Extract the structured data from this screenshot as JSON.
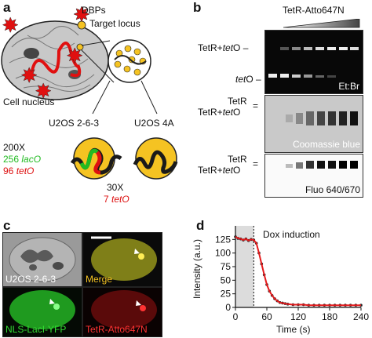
{
  "panel_a": {
    "label": "a",
    "legend_dbps": "DBPs",
    "legend_locus": "Target locus",
    "nucleus_label": "Cell nucleus",
    "line1": "U2OS 2-6-3",
    "line2": "U2OS 4A",
    "rep1": "200X",
    "lac1": "256",
    "lac2": "lacO",
    "tet1": "96",
    "tet2": "tetO",
    "rep2": "30X",
    "tet3": "7",
    "tet4": "tetO",
    "colors": {
      "lac": "#22bb22",
      "tet": "#dd1111",
      "locus": "#f5c322"
    }
  },
  "panel_b": {
    "label": "b",
    "title": "TetR-Atto647N",
    "gel1_top": "TetR+",
    "gel1_top_it": "tet",
    "gel1_top_end": "O",
    "gel1_bottom_it": "tet",
    "gel1_bottom_end": "O",
    "gel1_stain": "Et:Br",
    "gel2_l1": "TetR",
    "gel2_l2": "TetR+",
    "gel2_l2_it": "tet",
    "gel2_l2_end": "O",
    "gel2_stain": "Coomassie blue",
    "gel3_l1": "TetR",
    "gel3_l2": "TetR+",
    "gel3_l2_it": "tet",
    "gel3_l2_end": "O",
    "gel3_stain": "Fluo 640/670"
  },
  "panel_c": {
    "label": "c",
    "tiles": [
      "U2OS 2-6-3",
      "Merge",
      "NLS-LacI-YFP",
      "TetR-Atto647N"
    ]
  },
  "panel_d": {
    "label": "d",
    "annotation": "Dox induction",
    "ylabel": "Intensity (a.u.)",
    "xlabel": "Time (s)"
  },
  "chart_data": {
    "type": "scatter",
    "title": "",
    "xlabel": "Time (s)",
    "ylabel": "Intensity (a.u.)",
    "xlim": [
      0,
      240
    ],
    "ylim": [
      0,
      150
    ],
    "xticks": [
      0,
      60,
      120,
      180,
      240
    ],
    "yticks": [
      0,
      25,
      50,
      75,
      100,
      125
    ],
    "annotation_x": 35,
    "x": [
      0,
      5,
      10,
      15,
      20,
      25,
      30,
      35,
      40,
      45,
      50,
      55,
      60,
      65,
      70,
      75,
      80,
      85,
      90,
      95,
      100,
      110,
      120,
      130,
      140,
      150,
      160,
      170,
      180,
      190,
      200,
      210,
      220,
      230,
      240
    ],
    "y": [
      130,
      127,
      126,
      124,
      126,
      123,
      125,
      124,
      118,
      100,
      80,
      60,
      42,
      30,
      22,
      16,
      12,
      9,
      8,
      7,
      6,
      5,
      5,
      5,
      4,
      4,
      4,
      4,
      4,
      4,
      4,
      4,
      4,
      4,
      4
    ],
    "fit_color": "#e41a1c",
    "point_color": "#222222"
  }
}
